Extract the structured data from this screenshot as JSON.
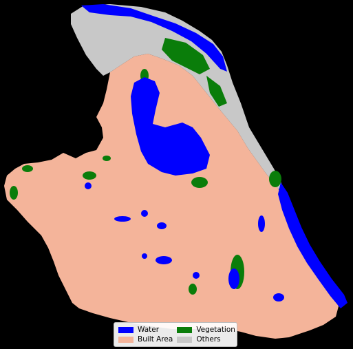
{
  "map": {
    "background_color": "#000000",
    "classes": [
      {
        "id": "water",
        "color": "#0000ff"
      },
      {
        "id": "built_area",
        "color": "#f4b49a"
      },
      {
        "id": "vegetation",
        "color": "#0a7d0a"
      },
      {
        "id": "others",
        "color": "#c8c8c8"
      }
    ]
  },
  "legend": {
    "items": [
      {
        "label": "Water",
        "color": "#0000ff"
      },
      {
        "label": "Vegetation",
        "color": "#0a7d0a"
      },
      {
        "label": "Built Area",
        "color": "#f4b49a"
      },
      {
        "label": "Others",
        "color": "#c8c8c8"
      }
    ]
  }
}
